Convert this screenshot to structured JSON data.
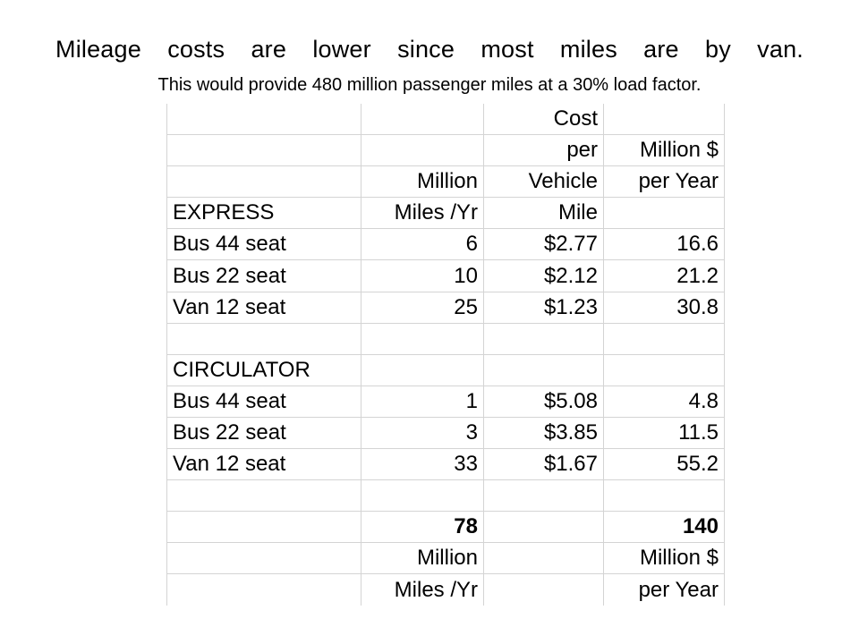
{
  "heading": "Mileage costs are lower since most miles are by van.",
  "subheading": "This would provide 480 million passenger miles at a 30% load factor.",
  "table": {
    "header_rows": [
      [
        "",
        "",
        "Cost",
        ""
      ],
      [
        "",
        "",
        "per",
        "Million $"
      ],
      [
        "",
        "Million",
        "Vehicle",
        "per Year"
      ],
      [
        "EXPRESS",
        "Miles /Yr",
        "Mile",
        ""
      ]
    ],
    "express_rows": [
      [
        "Bus 44 seat",
        "6",
        "$2.77",
        "16.6"
      ],
      [
        "Bus 22 seat",
        "10",
        "$2.12",
        "21.2"
      ],
      [
        "Van 12 seat",
        "25",
        "$1.23",
        "30.8"
      ]
    ],
    "circulator_label": "CIRCULATOR",
    "circulator_rows": [
      [
        "Bus 44 seat",
        "1",
        "$5.08",
        "4.8"
      ],
      [
        "Bus 22 seat",
        "3",
        "$3.85",
        "11.5"
      ],
      [
        "Van 12 seat",
        "33",
        "$1.67",
        "55.2"
      ]
    ],
    "totals": {
      "miles_total": "78",
      "cost_total": "140",
      "miles_unit_1": "Million",
      "miles_unit_2": "Miles /Yr",
      "cost_unit_1": "Million $",
      "cost_unit_2": "per Year"
    }
  }
}
